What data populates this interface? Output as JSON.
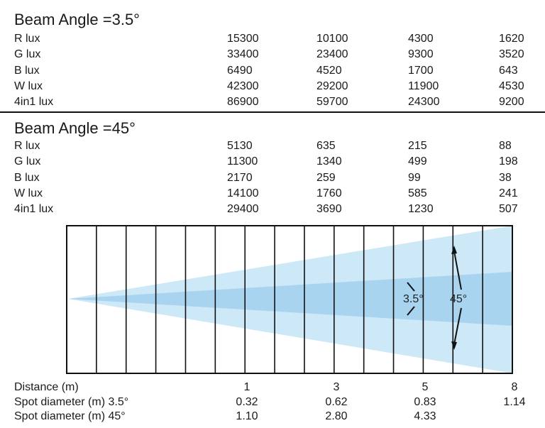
{
  "sections": [
    {
      "title": "Beam Angle =3.5°",
      "rows": [
        {
          "label": "R lux",
          "values": [
            "15300",
            "10100",
            "4300",
            "1620"
          ]
        },
        {
          "label": "G lux",
          "values": [
            "33400",
            "23400",
            "9300",
            "3520"
          ]
        },
        {
          "label": "B lux",
          "values": [
            "6490",
            "4520",
            "1700",
            "643"
          ]
        },
        {
          "label": "W lux",
          "values": [
            "42300",
            "29200",
            "11900",
            "4530"
          ]
        },
        {
          "label": "4in1 lux",
          "values": [
            "86900",
            "59700",
            "24300",
            "9200"
          ]
        }
      ]
    },
    {
      "title": "Beam Angle =45°",
      "rows": [
        {
          "label": "R lux",
          "values": [
            "5130",
            "635",
            "215",
            "88"
          ]
        },
        {
          "label": "G lux",
          "values": [
            "11300",
            "1340",
            "499",
            "198"
          ]
        },
        {
          "label": "B lux",
          "values": [
            "2170",
            "259",
            "99",
            "38"
          ]
        },
        {
          "label": "W lux",
          "values": [
            "14100",
            "1760",
            "585",
            "241"
          ]
        },
        {
          "label": "4in1 lux",
          "values": [
            "29400",
            "3690",
            "1230",
            "507"
          ]
        }
      ]
    }
  ],
  "diagram": {
    "narrow_angle_label": "3.5°",
    "wide_angle_label": "45°",
    "colors": {
      "wide_beam": "#cde8f7",
      "narrow_beam": "#a9d4ef",
      "grid": "#111111"
    }
  },
  "footer": {
    "distance_label": "Distance (m)",
    "distances": [
      "1",
      "3",
      "5",
      "8"
    ],
    "spot_narrow_label": "Spot diameter (m) 3.5°",
    "spot_narrow": [
      "0.32",
      "0.62",
      "0.83",
      "1.14"
    ],
    "spot_wide_label": "Spot diameter (m) 45°",
    "spot_wide": [
      "1.10",
      "2.80",
      "4.33",
      ""
    ]
  }
}
